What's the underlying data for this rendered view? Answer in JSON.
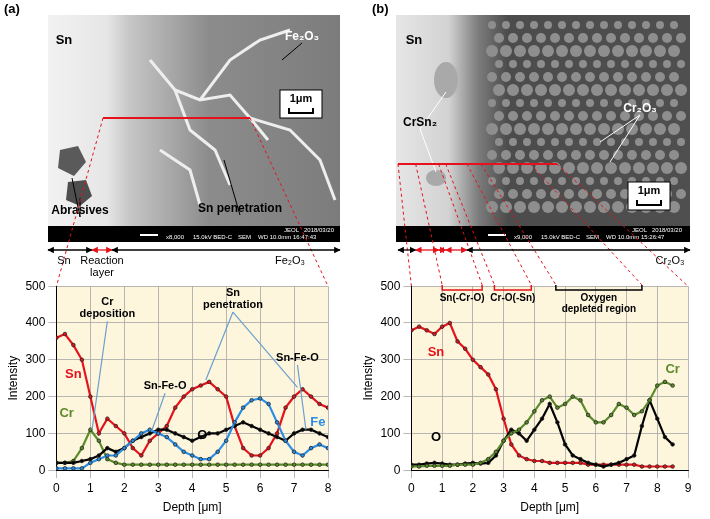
{
  "chart_data": [
    {
      "title": "(a)",
      "type": "line",
      "x_label": "Depth [μm]",
      "y_label": "Intensity",
      "xlim": [
        0,
        8
      ],
      "xticks": [
        0,
        1,
        2,
        3,
        4,
        5,
        6,
        7,
        8
      ],
      "ylim": [
        0,
        500
      ],
      "yticks": [
        0,
        100,
        200,
        300,
        400,
        500
      ],
      "grid": true,
      "micrograph": {
        "labels": [
          "Sn",
          "Fe₂O₃",
          "Abrasives",
          "Sn penetration"
        ],
        "scale_bar": "1μm",
        "footer": [
          "x8,000",
          "15.0kV BED-C",
          "SEM",
          "WD 10.0mm 16:47:43",
          "JEOL",
          "2018/03/20"
        ],
        "layers": [
          "Sn",
          "Reaction layer",
          "Fe₂O₃"
        ]
      },
      "x": [
        0,
        0.25,
        0.5,
        0.75,
        1,
        1.25,
        1.5,
        1.75,
        2,
        2.25,
        2.5,
        2.75,
        3,
        3.25,
        3.5,
        3.75,
        4,
        4.25,
        4.5,
        4.75,
        5,
        5.25,
        5.5,
        5.75,
        6,
        6.25,
        6.5,
        6.75,
        7,
        7.25,
        7.5,
        7.75,
        8
      ],
      "series": [
        {
          "name": "Fe",
          "color": "#2a8ee6",
          "marker": "circle",
          "label_at": [
            7.7,
            130
          ],
          "values": [
            5,
            5,
            5,
            5,
            20,
            30,
            40,
            40,
            60,
            80,
            100,
            110,
            100,
            90,
            70,
            50,
            40,
            30,
            30,
            50,
            80,
            130,
            170,
            190,
            195,
            180,
            130,
            80,
            50,
            40,
            60,
            70,
            60
          ]
        },
        {
          "name": "O",
          "color": "#000000",
          "marker": "circle",
          "label_at": [
            4.3,
            95
          ],
          "values": [
            20,
            20,
            20,
            25,
            30,
            40,
            60,
            50,
            60,
            80,
            90,
            100,
            110,
            110,
            100,
            90,
            80,
            90,
            100,
            100,
            110,
            120,
            130,
            120,
            110,
            100,
            90,
            80,
            100,
            110,
            110,
            100,
            90
          ]
        },
        {
          "name": "Cr",
          "color": "#5b8c2a",
          "marker": "circle",
          "label_at": [
            0.3,
            155
          ],
          "values": [
            20,
            20,
            25,
            60,
            110,
            80,
            30,
            20,
            15,
            15,
            15,
            15,
            15,
            15,
            15,
            15,
            15,
            15,
            15,
            15,
            15,
            15,
            15,
            15,
            15,
            15,
            15,
            15,
            15,
            15,
            15,
            15,
            15
          ]
        },
        {
          "name": "Sn",
          "color": "#e5121b",
          "marker": "circle",
          "label_at": [
            0.5,
            260
          ],
          "values": [
            360,
            370,
            340,
            300,
            200,
            100,
            140,
            120,
            100,
            60,
            40,
            80,
            100,
            120,
            170,
            200,
            220,
            230,
            240,
            220,
            200,
            120,
            60,
            40,
            40,
            60,
            100,
            170,
            200,
            220,
            200,
            180,
            170
          ]
        }
      ],
      "annotations": [
        {
          "text": "Cr\ndeposition",
          "x": 1.5,
          "y": 440,
          "color": "#000000",
          "points": [
            [
              1.05,
              110
            ]
          ]
        },
        {
          "text": "Sn-Fe-O",
          "x": 3.2,
          "y": 228,
          "color": "#000000",
          "points": [
            [
              2.8,
              105
            ]
          ]
        },
        {
          "text": "Sn\npenetration",
          "x": 5.2,
          "y": 465,
          "color": "#000000",
          "points": [
            [
              4.4,
              245
            ],
            [
              7.1,
              225
            ]
          ]
        },
        {
          "text": "Sn-Fe-O",
          "x": 7.1,
          "y": 305,
          "color": "#000000",
          "points": [
            [
              7.35,
              110
            ]
          ]
        }
      ]
    },
    {
      "title": "(b)",
      "type": "line",
      "x_label": "Depth [μm]",
      "y_label": "Intensity",
      "xlim": [
        0,
        9
      ],
      "xticks": [
        0,
        1,
        2,
        3,
        4,
        5,
        6,
        7,
        8,
        9
      ],
      "ylim": [
        0,
        500
      ],
      "yticks": [
        0,
        100,
        200,
        300,
        400,
        500
      ],
      "grid": true,
      "micrograph": {
        "labels": [
          "Sn",
          "CrSn₂",
          "Cr₂O₃"
        ],
        "scale_bar": "1μm",
        "footer": [
          "x9,000",
          "15.0kV BED-C",
          "SEM",
          "WD 10.0mm 15:26:47",
          "JEOL",
          "2018/03/20"
        ],
        "layers": [
          "Cr₂O₃"
        ]
      },
      "x": [
        0,
        0.25,
        0.5,
        0.75,
        1,
        1.25,
        1.5,
        1.75,
        2,
        2.25,
        2.5,
        2.75,
        3,
        3.25,
        3.5,
        3.75,
        4,
        4.25,
        4.5,
        4.75,
        5,
        5.25,
        5.5,
        5.75,
        6,
        6.25,
        6.5,
        6.75,
        7,
        7.25,
        7.5,
        7.75,
        8,
        8.25,
        8.5
      ],
      "series": [
        {
          "name": "Cr",
          "color": "#5b8c2a",
          "marker": "circle",
          "label_at": [
            8.5,
            275
          ],
          "values": [
            10,
            10,
            12,
            12,
            12,
            12,
            15,
            15,
            15,
            20,
            30,
            50,
            80,
            100,
            110,
            130,
            160,
            190,
            200,
            170,
            180,
            200,
            190,
            150,
            130,
            130,
            150,
            180,
            170,
            150,
            160,
            190,
            230,
            240,
            230
          ]
        },
        {
          "name": "O",
          "color": "#000000",
          "marker": "circle",
          "label_at": [
            0.8,
            90
          ],
          "values": [
            15,
            15,
            18,
            20,
            18,
            15,
            15,
            18,
            20,
            18,
            20,
            40,
            80,
            110,
            100,
            80,
            110,
            140,
            180,
            130,
            70,
            40,
            30,
            20,
            15,
            10,
            15,
            20,
            30,
            40,
            120,
            190,
            140,
            90,
            70
          ]
        },
        {
          "name": "Sn",
          "color": "#e5121b",
          "marker": "circle",
          "label_at": [
            0.8,
            320
          ],
          "values": [
            380,
            390,
            380,
            370,
            390,
            400,
            350,
            330,
            300,
            280,
            260,
            220,
            140,
            70,
            40,
            30,
            25,
            25,
            20,
            20,
            20,
            20,
            20,
            15,
            15,
            15,
            15,
            15,
            15,
            15,
            10,
            10,
            10,
            10,
            10
          ]
        }
      ],
      "annotations": [
        {
          "text": "Sn(-Cr-O)",
          "x": [
            1.0,
            2.3
          ],
          "y": 490,
          "color": "#e5121b"
        },
        {
          "text": "Cr-O(-Sn)",
          "x": [
            2.7,
            3.9
          ],
          "y": 490,
          "color": "#e5121b"
        },
        {
          "text": "Oxygen\ndepleted region",
          "x": [
            4.7,
            7.5
          ],
          "y": 490,
          "color": "#000000"
        }
      ]
    }
  ]
}
